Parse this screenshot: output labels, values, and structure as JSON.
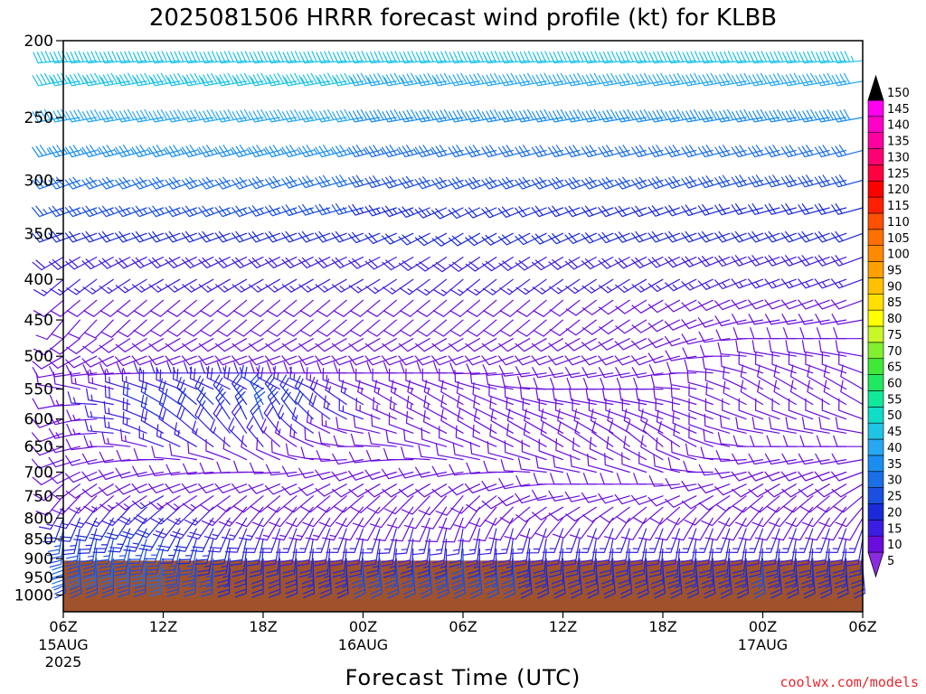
{
  "chart_data": {
    "type": "wind-barb-time-height",
    "title": "2025081506 HRRR forecast wind profile (kt) for KLBB",
    "xlabel": "Forecast Time (UTC)",
    "credit": "coolwx.com/models",
    "y_axis": {
      "label": "",
      "unit": "hPa",
      "scale": "log",
      "inverted": true,
      "range": [
        1050,
        200
      ],
      "ticks": [
        200,
        250,
        300,
        350,
        400,
        450,
        500,
        550,
        600,
        650,
        700,
        750,
        800,
        850,
        900,
        950,
        1000
      ]
    },
    "x_axis": {
      "range_hours": [
        0,
        48
      ],
      "ticks": [
        {
          "hour": 0,
          "label": "06Z",
          "sub1": "15AUG",
          "sub2": "2025"
        },
        {
          "hour": 6,
          "label": "12Z",
          "sub1": "",
          "sub2": ""
        },
        {
          "hour": 12,
          "label": "18Z",
          "sub1": "",
          "sub2": ""
        },
        {
          "hour": 18,
          "label": "00Z",
          "sub1": "16AUG",
          "sub2": ""
        },
        {
          "hour": 24,
          "label": "06Z",
          "sub1": "",
          "sub2": ""
        },
        {
          "hour": 30,
          "label": "12Z",
          "sub1": "",
          "sub2": ""
        },
        {
          "hour": 36,
          "label": "18Z",
          "sub1": "",
          "sub2": ""
        },
        {
          "hour": 42,
          "label": "00Z",
          "sub1": "17AUG",
          "sub2": ""
        },
        {
          "hour": 48,
          "label": "06Z",
          "sub1": "",
          "sub2": ""
        }
      ]
    },
    "terrain": {
      "surface_pressure_hpa": 905,
      "color": "#a0522d"
    },
    "colorbar": {
      "unit": "kt",
      "levels": [
        5,
        10,
        15,
        20,
        25,
        30,
        35,
        40,
        45,
        50,
        55,
        60,
        65,
        70,
        75,
        80,
        85,
        90,
        95,
        100,
        105,
        110,
        115,
        120,
        125,
        130,
        135,
        140,
        145,
        150
      ],
      "colors": [
        "#8a2be2",
        "#6a0ddd",
        "#3a1de0",
        "#1a2ad8",
        "#1a4fe0",
        "#1a6ee8",
        "#1a8ef0",
        "#28a8f2",
        "#20c4e4",
        "#10dcc8",
        "#10e89a",
        "#20e860",
        "#40e838",
        "#80f030",
        "#c8f828",
        "#ffff00",
        "#ffe000",
        "#ffc000",
        "#ffa000",
        "#ff8a00",
        "#ff7000",
        "#ff5000",
        "#ff2000",
        "#ff0000",
        "#ff0040",
        "#ff0070",
        "#ff00a0",
        "#ff00c8",
        "#ff00f0",
        "#ff00ff"
      ]
    },
    "levels_hpa": [
      1000,
      975,
      950,
      925,
      900,
      875,
      850,
      825,
      800,
      775,
      750,
      725,
      700,
      675,
      650,
      625,
      600,
      575,
      550,
      525,
      500,
      475,
      450,
      425,
      400,
      375,
      350,
      325,
      300,
      275,
      250,
      225,
      212
    ],
    "keyframes": [
      {
        "hour": 0,
        "dir": [
          170,
          170,
          170,
          175,
          180,
          180,
          185,
          190,
          200,
          210,
          220,
          230,
          240,
          250,
          250,
          250,
          250,
          260,
          280,
          260,
          240,
          230,
          220,
          230,
          230,
          240,
          250,
          250,
          250,
          255,
          260,
          260,
          265
        ],
        "spd": [
          15,
          20,
          25,
          28,
          30,
          30,
          28,
          25,
          20,
          15,
          12,
          10,
          10,
          10,
          10,
          12,
          12,
          12,
          10,
          10,
          12,
          12,
          10,
          12,
          15,
          18,
          20,
          25,
          30,
          35,
          40,
          45,
          45
        ]
      },
      {
        "hour": 6,
        "dir": [
          170,
          175,
          180,
          185,
          190,
          195,
          200,
          210,
          220,
          230,
          240,
          250,
          260,
          270,
          290,
          300,
          300,
          300,
          290,
          270,
          250,
          240,
          230,
          230,
          240,
          245,
          250,
          250,
          250,
          255,
          260,
          260,
          265
        ],
        "spd": [
          10,
          15,
          25,
          30,
          30,
          28,
          25,
          22,
          20,
          18,
          15,
          12,
          12,
          12,
          15,
          18,
          20,
          22,
          18,
          15,
          12,
          10,
          10,
          12,
          15,
          18,
          20,
          25,
          30,
          35,
          40,
          45,
          45
        ]
      },
      {
        "hour": 12,
        "dir": [
          180,
          180,
          180,
          180,
          180,
          185,
          190,
          200,
          210,
          220,
          230,
          250,
          270,
          300,
          320,
          330,
          340,
          330,
          300,
          270,
          250,
          240,
          230,
          230,
          240,
          245,
          250,
          250,
          250,
          255,
          260,
          260,
          265
        ],
        "spd": [
          12,
          15,
          18,
          20,
          20,
          20,
          20,
          18,
          15,
          12,
          10,
          10,
          10,
          12,
          15,
          20,
          25,
          25,
          20,
          15,
          12,
          10,
          10,
          12,
          15,
          18,
          20,
          25,
          30,
          35,
          40,
          45,
          45
        ]
      },
      {
        "hour": 18,
        "dir": [
          180,
          180,
          175,
          175,
          180,
          185,
          190,
          200,
          210,
          220,
          230,
          240,
          250,
          260,
          270,
          280,
          290,
          300,
          290,
          270,
          250,
          240,
          230,
          230,
          240,
          245,
          250,
          255,
          255,
          255,
          260,
          260,
          265
        ],
        "spd": [
          15,
          20,
          22,
          25,
          25,
          22,
          18,
          15,
          12,
          10,
          10,
          10,
          10,
          10,
          10,
          12,
          15,
          15,
          12,
          10,
          10,
          10,
          10,
          12,
          15,
          18,
          20,
          25,
          30,
          35,
          40,
          45,
          45
        ]
      },
      {
        "hour": 24,
        "dir": [
          180,
          180,
          175,
          175,
          180,
          180,
          185,
          190,
          200,
          210,
          220,
          240,
          260,
          280,
          290,
          300,
          300,
          300,
          290,
          270,
          250,
          240,
          230,
          230,
          230,
          235,
          240,
          245,
          250,
          255,
          260,
          260,
          265
        ],
        "spd": [
          15,
          20,
          25,
          28,
          28,
          25,
          20,
          15,
          12,
          10,
          10,
          10,
          10,
          10,
          10,
          12,
          12,
          12,
          10,
          10,
          10,
          10,
          10,
          12,
          15,
          18,
          20,
          22,
          28,
          32,
          38,
          42,
          45
        ]
      },
      {
        "hour": 30,
        "dir": [
          170,
          170,
          170,
          175,
          180,
          185,
          190,
          200,
          220,
          240,
          260,
          270,
          280,
          290,
          300,
          300,
          290,
          280,
          270,
          260,
          250,
          240,
          230,
          230,
          235,
          240,
          245,
          250,
          250,
          255,
          260,
          260,
          265
        ],
        "spd": [
          10,
          15,
          20,
          22,
          22,
          20,
          18,
          15,
          12,
          10,
          10,
          10,
          10,
          10,
          10,
          12,
          12,
          12,
          10,
          10,
          10,
          10,
          10,
          12,
          15,
          18,
          20,
          22,
          28,
          32,
          38,
          42,
          45
        ]
      },
      {
        "hour": 36,
        "dir": [
          180,
          180,
          175,
          175,
          180,
          185,
          190,
          200,
          210,
          230,
          250,
          270,
          290,
          300,
          310,
          300,
          290,
          280,
          270,
          260,
          250,
          245,
          240,
          240,
          240,
          245,
          250,
          250,
          250,
          255,
          260,
          260,
          265
        ],
        "spd": [
          15,
          18,
          22,
          22,
          22,
          20,
          18,
          15,
          12,
          10,
          10,
          10,
          10,
          12,
          12,
          12,
          12,
          12,
          12,
          10,
          10,
          10,
          10,
          12,
          15,
          18,
          20,
          22,
          28,
          32,
          38,
          42,
          45
        ]
      },
      {
        "hour": 42,
        "dir": [
          180,
          180,
          175,
          175,
          180,
          185,
          190,
          200,
          210,
          220,
          230,
          240,
          250,
          260,
          270,
          280,
          290,
          300,
          300,
          290,
          280,
          270,
          260,
          250,
          250,
          250,
          250,
          255,
          255,
          255,
          260,
          260,
          265
        ],
        "spd": [
          15,
          18,
          22,
          25,
          25,
          22,
          18,
          15,
          12,
          10,
          10,
          10,
          10,
          12,
          12,
          12,
          12,
          12,
          12,
          10,
          10,
          10,
          10,
          12,
          15,
          18,
          20,
          22,
          28,
          32,
          38,
          42,
          45
        ]
      },
      {
        "hour": 48,
        "dir": [
          180,
          180,
          175,
          175,
          180,
          185,
          190,
          200,
          210,
          220,
          230,
          240,
          250,
          260,
          270,
          280,
          290,
          300,
          300,
          290,
          280,
          270,
          260,
          250,
          250,
          250,
          250,
          255,
          255,
          255,
          260,
          260,
          265
        ],
        "spd": [
          12,
          15,
          20,
          22,
          22,
          20,
          18,
          15,
          12,
          10,
          10,
          10,
          10,
          12,
          12,
          12,
          12,
          12,
          12,
          10,
          10,
          10,
          10,
          12,
          15,
          18,
          20,
          22,
          28,
          32,
          38,
          42,
          45
        ]
      }
    ]
  }
}
